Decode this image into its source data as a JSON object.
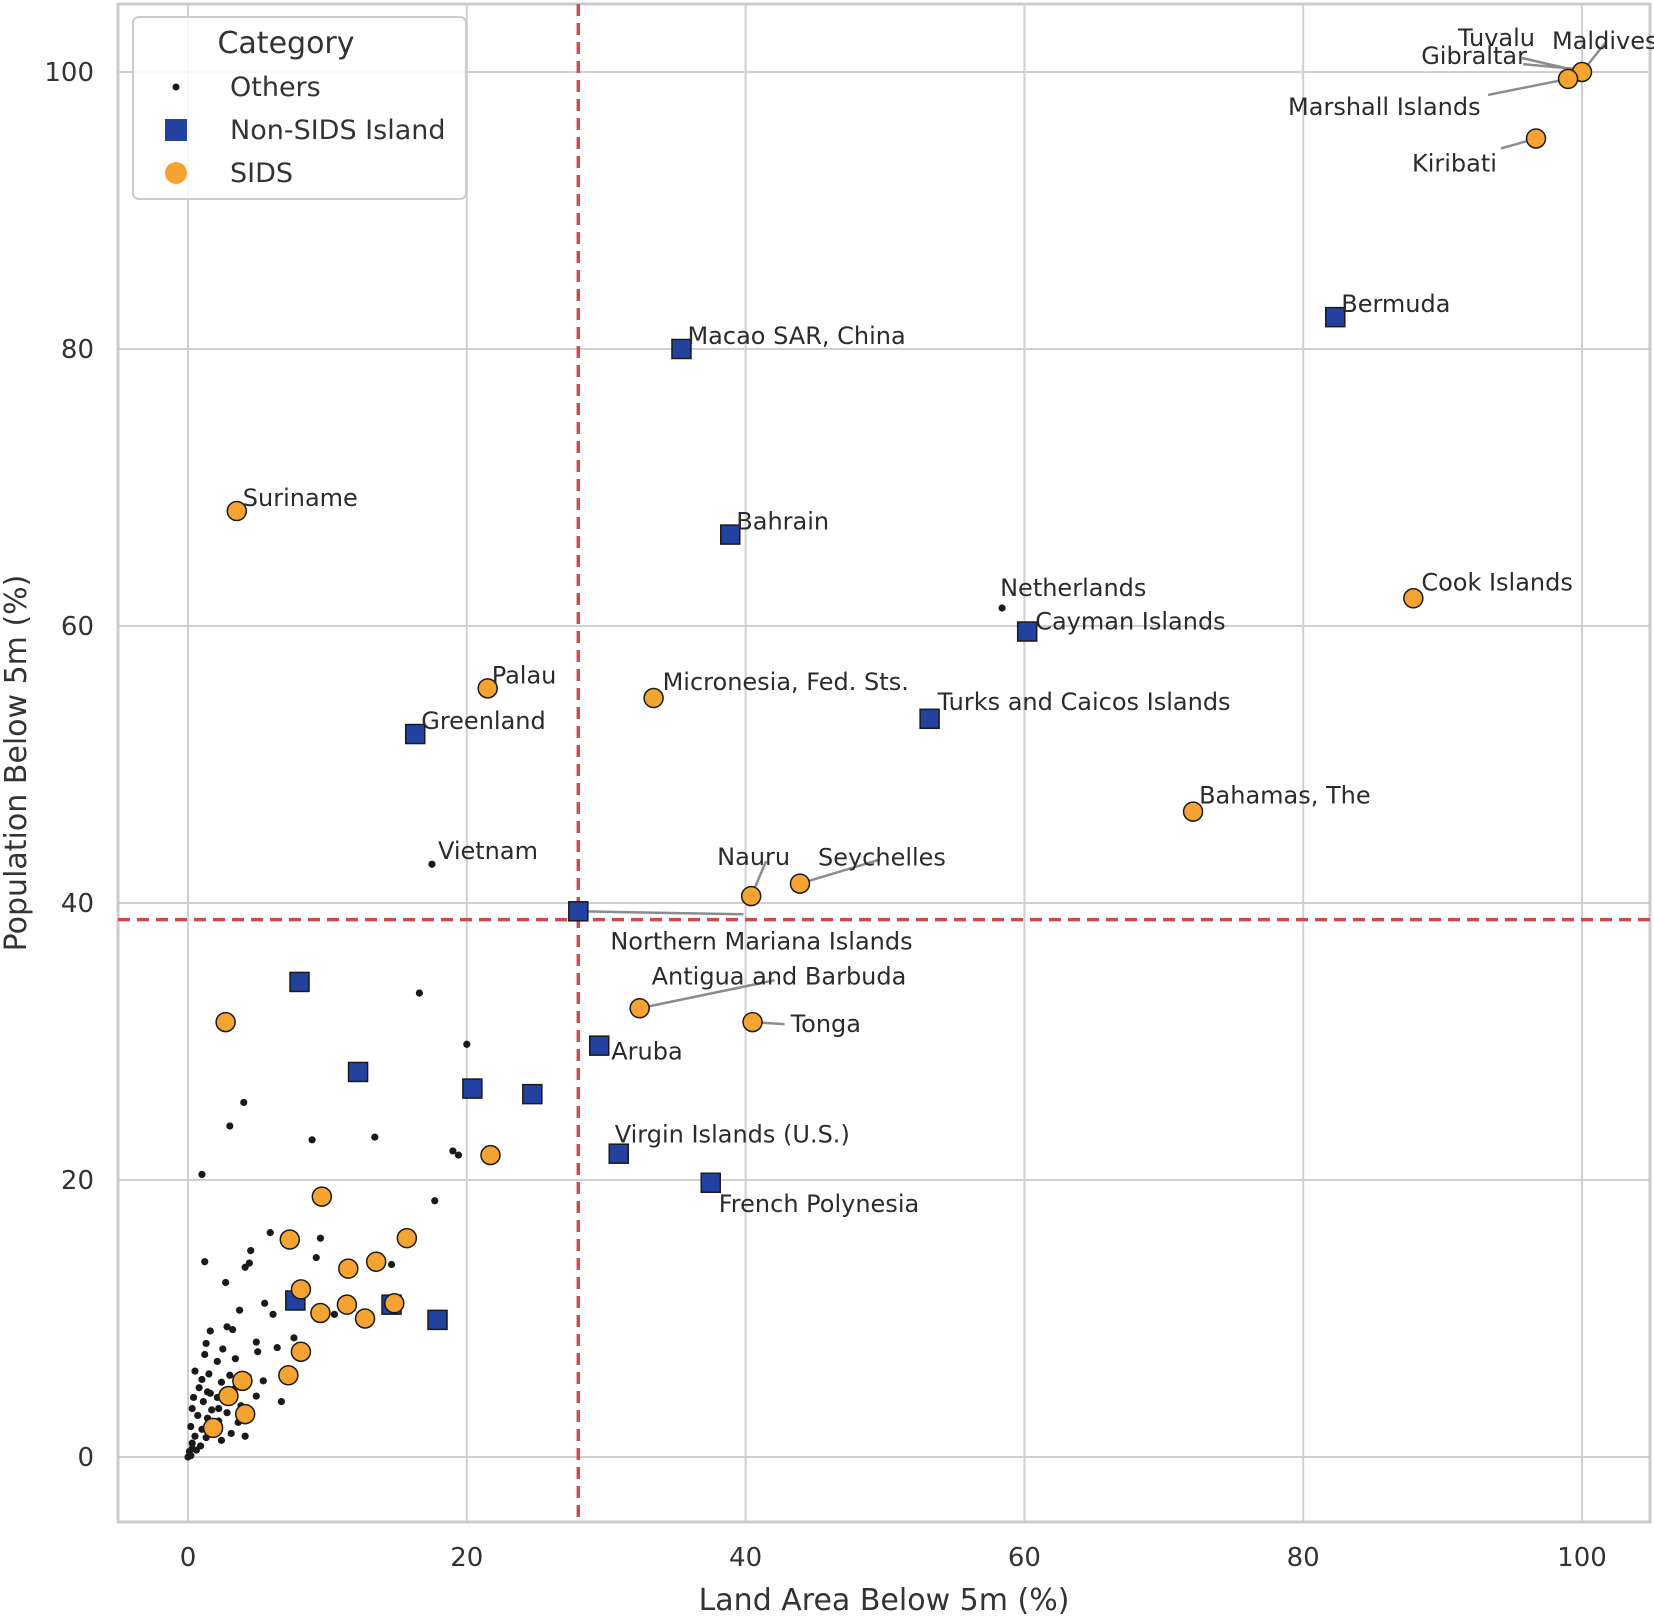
{
  "chart_data": {
    "type": "scatter",
    "title": "",
    "xlabel": "Land Area Below 5m (%)",
    "ylabel": "Population Below 5m (%)",
    "xlim": [
      -5,
      105
    ],
    "ylim": [
      -5,
      105
    ],
    "xticks": [
      0,
      20,
      40,
      60,
      80,
      100
    ],
    "yticks": [
      0,
      20,
      40,
      60,
      80,
      100
    ],
    "grid": true,
    "legend": {
      "title": "Category",
      "position": "top-left",
      "entries": [
        {
          "label": "Others",
          "marker": "dot",
          "color": "#1a1a1a"
        },
        {
          "label": "Non-SIDS Island",
          "marker": "square",
          "color": "#2342a0"
        },
        {
          "label": "SIDS",
          "marker": "circle",
          "color": "#f5a331"
        }
      ]
    },
    "reference_lines": {
      "x": 28,
      "y": 38.8,
      "color": "#c44e52",
      "style": "dashed"
    },
    "series": [
      {
        "name": "SIDS",
        "color": "#f5a331",
        "points": [
          {
            "x": 100,
            "y": 100,
            "label": "Maldives"
          },
          {
            "x": 99,
            "y": 99.5,
            "label": "Marshall Islands"
          },
          {
            "x": 96.7,
            "y": 95.2,
            "label": "Kiribati"
          },
          {
            "x": 87.9,
            "y": 62,
            "label": "Cook Islands"
          },
          {
            "x": 72.1,
            "y": 46.6,
            "label": "Bahamas, The"
          },
          {
            "x": 3.5,
            "y": 68.3,
            "label": "Suriname"
          },
          {
            "x": 21.5,
            "y": 55.5,
            "label": "Palau"
          },
          {
            "x": 33.4,
            "y": 54.8,
            "label": "Micronesia, Fed. Sts."
          },
          {
            "x": 40.4,
            "y": 40.5,
            "label": "Nauru"
          },
          {
            "x": 43.9,
            "y": 41.4,
            "label": "Seychelles"
          },
          {
            "x": 32.4,
            "y": 32.4,
            "label": "Antigua and Barbuda"
          },
          {
            "x": 40.5,
            "y": 31.4,
            "label": "Tonga"
          },
          {
            "x": 2.7,
            "y": 31.4,
            "label": ""
          },
          {
            "x": 21.7,
            "y": 21.8,
            "label": ""
          },
          {
            "x": 9.6,
            "y": 18.8,
            "label": ""
          },
          {
            "x": 7.3,
            "y": 15.7,
            "label": ""
          },
          {
            "x": 15.7,
            "y": 15.8,
            "label": ""
          },
          {
            "x": 11.5,
            "y": 13.6,
            "label": ""
          },
          {
            "x": 13.5,
            "y": 14.1,
            "label": ""
          },
          {
            "x": 8.1,
            "y": 12.1,
            "label": ""
          },
          {
            "x": 11.4,
            "y": 11,
            "label": ""
          },
          {
            "x": 14.8,
            "y": 11.1,
            "label": ""
          },
          {
            "x": 9.5,
            "y": 10.4,
            "label": ""
          },
          {
            "x": 12.7,
            "y": 10,
            "label": ""
          },
          {
            "x": 8.1,
            "y": 7.6,
            "label": ""
          },
          {
            "x": 7.2,
            "y": 5.9,
            "label": ""
          },
          {
            "x": 3.9,
            "y": 5.5,
            "label": ""
          },
          {
            "x": 2.9,
            "y": 4.4,
            "label": ""
          },
          {
            "x": 4.1,
            "y": 3.1,
            "label": ""
          },
          {
            "x": 1.8,
            "y": 2.1,
            "label": ""
          }
        ]
      },
      {
        "name": "Non-SIDS Island",
        "color": "#2342a0",
        "points": [
          {
            "x": 82.3,
            "y": 82.3,
            "label": "Bermuda"
          },
          {
            "x": 35.4,
            "y": 80,
            "label": "Macao SAR, China"
          },
          {
            "x": 38.9,
            "y": 66.6,
            "label": "Bahrain"
          },
          {
            "x": 60.2,
            "y": 59.6,
            "label": "Cayman Islands"
          },
          {
            "x": 53.2,
            "y": 53.3,
            "label": "Turks and Caicos Islands"
          },
          {
            "x": 16.3,
            "y": 52.2,
            "label": "Greenland"
          },
          {
            "x": 28,
            "y": 39.4,
            "label": "Northern Mariana Islands"
          },
          {
            "x": 29.5,
            "y": 29.7,
            "label": "Aruba"
          },
          {
            "x": 30.9,
            "y": 21.9,
            "label": "Virgin Islands (U.S.)"
          },
          {
            "x": 37.5,
            "y": 19.8,
            "label": "French Polynesia"
          },
          {
            "x": 8,
            "y": 34.3,
            "label": ""
          },
          {
            "x": 12.2,
            "y": 27.8,
            "label": ""
          },
          {
            "x": 20.4,
            "y": 26.6,
            "label": ""
          },
          {
            "x": 24.7,
            "y": 26.2,
            "label": ""
          },
          {
            "x": 7.7,
            "y": 11.3,
            "label": ""
          },
          {
            "x": 14.6,
            "y": 11,
            "label": ""
          },
          {
            "x": 17.9,
            "y": 9.9,
            "label": ""
          }
        ]
      },
      {
        "name": "Others",
        "color": "#1a1a1a",
        "points": [
          {
            "x": 100,
            "y": 100,
            "label": "Tuvalu"
          },
          {
            "x": 99.8,
            "y": 100.2,
            "label": "Gibraltar"
          },
          {
            "x": 58.4,
            "y": 61.3,
            "label": "Netherlands"
          },
          {
            "x": 17.5,
            "y": 42.8,
            "label": "Vietnam"
          },
          {
            "x": 16.6,
            "y": 33.5,
            "label": ""
          },
          {
            "x": 20,
            "y": 29.8,
            "label": ""
          },
          {
            "x": 4,
            "y": 25.6,
            "label": ""
          },
          {
            "x": 3,
            "y": 23.9,
            "label": ""
          },
          {
            "x": 13.4,
            "y": 23.1,
            "label": ""
          },
          {
            "x": 8.9,
            "y": 22.9,
            "label": ""
          },
          {
            "x": 19,
            "y": 22.1,
            "label": ""
          },
          {
            "x": 19.4,
            "y": 21.8,
            "label": ""
          },
          {
            "x": 1,
            "y": 20.4,
            "label": ""
          },
          {
            "x": 17.7,
            "y": 18.5,
            "label": ""
          },
          {
            "x": 5.9,
            "y": 16.2,
            "label": ""
          },
          {
            "x": 9.5,
            "y": 15.8,
            "label": ""
          },
          {
            "x": 4.5,
            "y": 14.9,
            "label": ""
          },
          {
            "x": 9.2,
            "y": 14.4,
            "label": ""
          },
          {
            "x": 1.2,
            "y": 14.1,
            "label": ""
          },
          {
            "x": 4.4,
            "y": 14,
            "label": ""
          },
          {
            "x": 4.1,
            "y": 13.7,
            "label": ""
          },
          {
            "x": 14.6,
            "y": 13.9,
            "label": ""
          },
          {
            "x": 2.7,
            "y": 12.6,
            "label": ""
          },
          {
            "x": 5.5,
            "y": 11.1,
            "label": ""
          },
          {
            "x": 3.7,
            "y": 10.6,
            "label": ""
          },
          {
            "x": 10.5,
            "y": 10.3,
            "label": ""
          },
          {
            "x": 6.1,
            "y": 10.3,
            "label": ""
          },
          {
            "x": 2.8,
            "y": 9.4,
            "label": ""
          },
          {
            "x": 3.2,
            "y": 9.2,
            "label": ""
          },
          {
            "x": 1.6,
            "y": 9.1,
            "label": ""
          },
          {
            "x": 7.6,
            "y": 8.6,
            "label": ""
          },
          {
            "x": 4.9,
            "y": 8.3,
            "label": ""
          },
          {
            "x": 1.3,
            "y": 8.2,
            "label": ""
          },
          {
            "x": 6.4,
            "y": 7.9,
            "label": ""
          },
          {
            "x": 2.5,
            "y": 7.8,
            "label": ""
          },
          {
            "x": 5,
            "y": 7.6,
            "label": ""
          },
          {
            "x": 1.2,
            "y": 7.4,
            "label": ""
          },
          {
            "x": 3.4,
            "y": 7.1,
            "label": ""
          },
          {
            "x": 2.1,
            "y": 6.9,
            "label": ""
          },
          {
            "x": 0.5,
            "y": 6.2,
            "label": ""
          },
          {
            "x": 1.5,
            "y": 6,
            "label": ""
          },
          {
            "x": 4.3,
            "y": 5.8,
            "label": ""
          },
          {
            "x": 1,
            "y": 5.6,
            "label": ""
          },
          {
            "x": 2.4,
            "y": 5.4,
            "label": ""
          },
          {
            "x": 5.4,
            "y": 5.5,
            "label": ""
          },
          {
            "x": 0.8,
            "y": 5,
            "label": ""
          },
          {
            "x": 1.4,
            "y": 4.7,
            "label": ""
          },
          {
            "x": 3.3,
            "y": 4.9,
            "label": ""
          },
          {
            "x": 0.4,
            "y": 4.3,
            "label": ""
          },
          {
            "x": 2.1,
            "y": 4.3,
            "label": ""
          },
          {
            "x": 4.9,
            "y": 4.4,
            "label": ""
          },
          {
            "x": 1.1,
            "y": 4,
            "label": ""
          },
          {
            "x": 3.8,
            "y": 3.7,
            "label": ""
          },
          {
            "x": 6.7,
            "y": 4,
            "label": ""
          },
          {
            "x": 0.3,
            "y": 3.5,
            "label": ""
          },
          {
            "x": 1.7,
            "y": 3.4,
            "label": ""
          },
          {
            "x": 2.8,
            "y": 3.2,
            "label": ""
          },
          {
            "x": 0.7,
            "y": 3,
            "label": ""
          },
          {
            "x": 1.4,
            "y": 2.8,
            "label": ""
          },
          {
            "x": 2.2,
            "y": 2.6,
            "label": ""
          },
          {
            "x": 3.6,
            "y": 2.5,
            "label": ""
          },
          {
            "x": 0.2,
            "y": 2.2,
            "label": ""
          },
          {
            "x": 1,
            "y": 2,
            "label": ""
          },
          {
            "x": 1.9,
            "y": 1.8,
            "label": ""
          },
          {
            "x": 3.1,
            "y": 1.7,
            "label": ""
          },
          {
            "x": 0.5,
            "y": 1.5,
            "label": ""
          },
          {
            "x": 1.3,
            "y": 1.4,
            "label": ""
          },
          {
            "x": 2.4,
            "y": 1.2,
            "label": ""
          },
          {
            "x": 0.3,
            "y": 1,
            "label": ""
          },
          {
            "x": 0.9,
            "y": 0.8,
            "label": ""
          },
          {
            "x": 4.1,
            "y": 1.5,
            "label": ""
          },
          {
            "x": 0.1,
            "y": 0.4,
            "label": ""
          },
          {
            "x": 0.6,
            "y": 0.5,
            "label": ""
          },
          {
            "x": 0,
            "y": 0,
            "label": ""
          },
          {
            "x": 0.2,
            "y": 0.1,
            "label": ""
          },
          {
            "x": 0.3,
            "y": 0.6,
            "label": ""
          },
          {
            "x": 2.2,
            "y": 3.5,
            "label": ""
          },
          {
            "x": 1.6,
            "y": 4.6,
            "label": ""
          },
          {
            "x": 3,
            "y": 5.9,
            "label": ""
          }
        ]
      }
    ]
  }
}
